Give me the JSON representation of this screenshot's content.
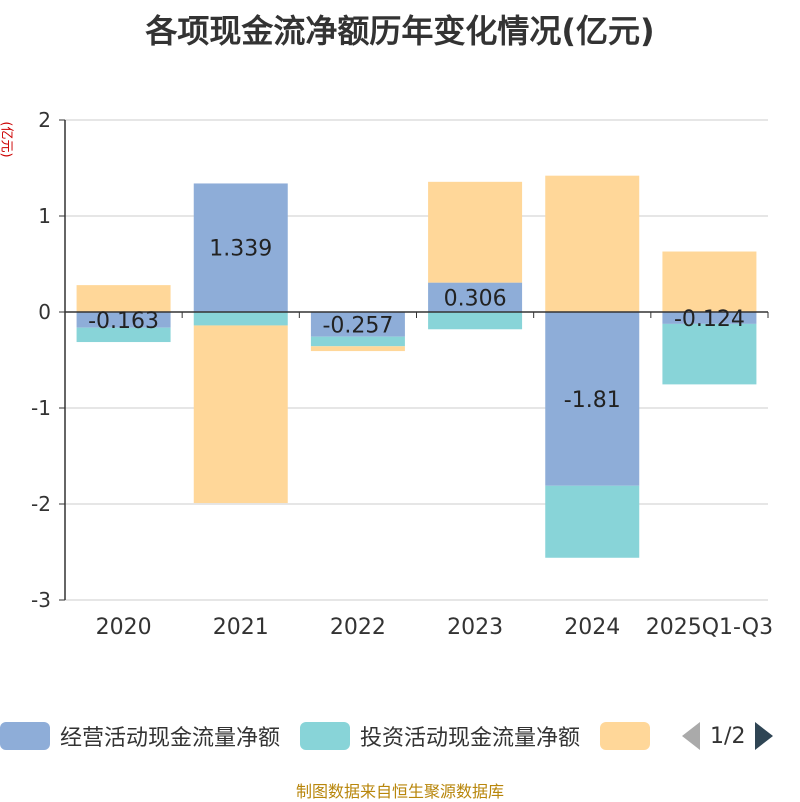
{
  "chart_data": {
    "type": "bar",
    "stacked": true,
    "title": "各项现金流净额历年变化情况(亿元)",
    "ylabel": "(亿元)",
    "categories": [
      "2020",
      "2021",
      "2022",
      "2023",
      "2024",
      "2025Q1-Q3"
    ],
    "ylim": [
      -3,
      2
    ],
    "yticks": [
      2,
      1,
      0,
      -1,
      -2,
      -3
    ],
    "series": [
      {
        "name": "经营活动现金流量净额",
        "color": "#8eadd8",
        "values": [
          -0.163,
          1.339,
          -0.257,
          0.306,
          -1.81,
          -0.124
        ],
        "show_labels": true
      },
      {
        "name": "投资活动现金流量净额",
        "color": "#88d4d8",
        "values": [
          -0.15,
          -0.14,
          -0.1,
          -0.18,
          -0.75,
          -0.63
        ],
        "show_labels": false
      },
      {
        "name": "",
        "color": "#ffd799",
        "values": [
          0.28,
          -1.85,
          -0.05,
          1.05,
          1.42,
          0.63
        ],
        "show_labels": false
      }
    ]
  },
  "legend": {
    "items": [
      {
        "label": "经营活动现金流量净额",
        "color": "#8eadd8"
      },
      {
        "label": "投资活动现金流量净额",
        "color": "#88d4d8"
      },
      {
        "label": "",
        "color": "#ffd799"
      }
    ],
    "page_indicator": "1/2"
  },
  "source": "制图数据来自恒生聚源数据库"
}
